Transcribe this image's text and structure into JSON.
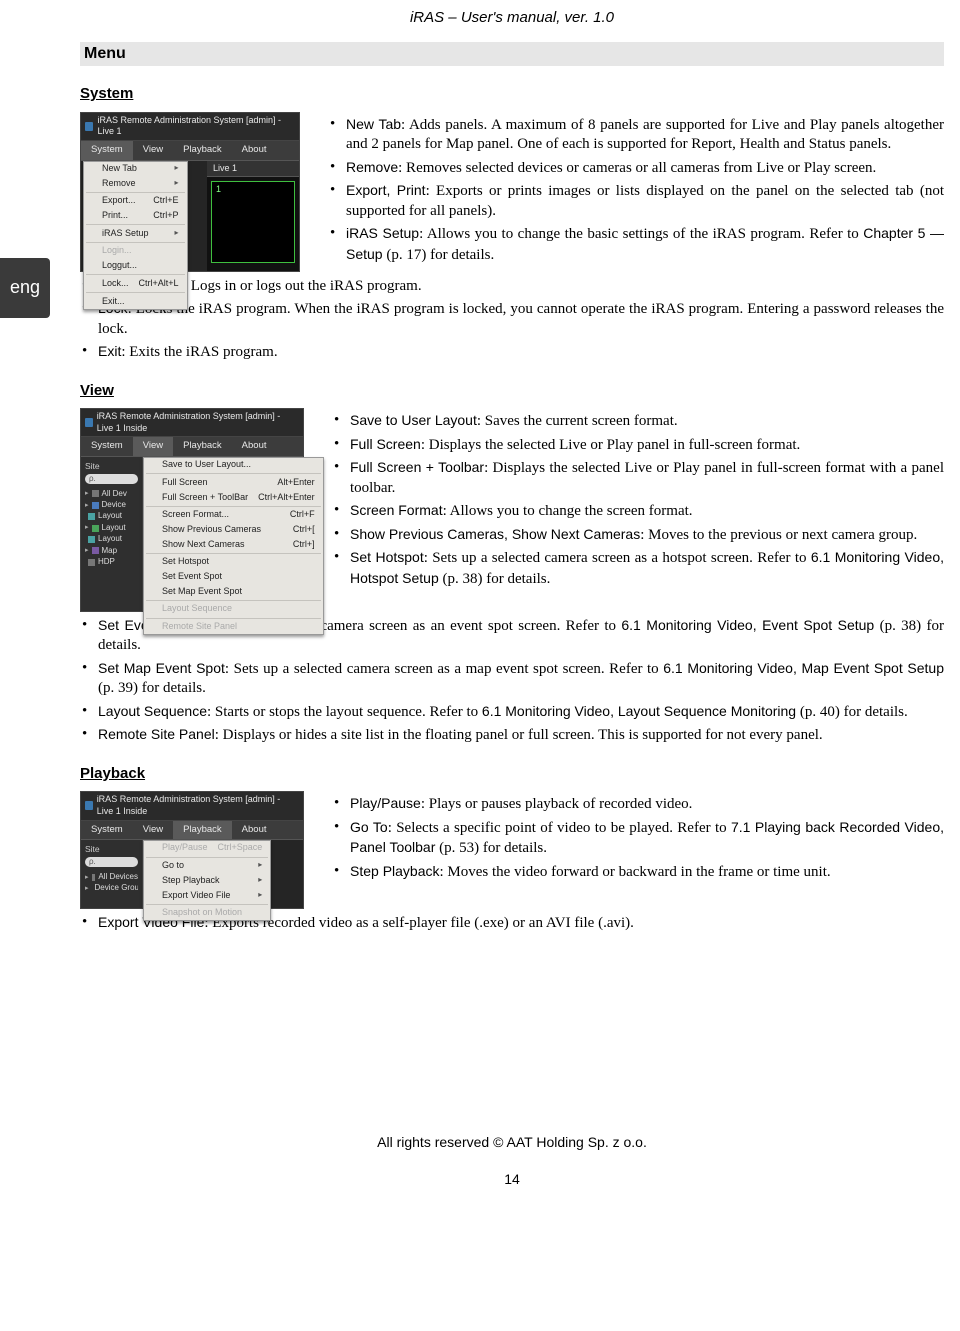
{
  "header": {
    "title": "iRAS – User's manual, ver. 1.0"
  },
  "menu_heading": "Menu",
  "lang_tab": "eng",
  "sections": {
    "system": {
      "title": "System",
      "screenshot": {
        "window_title": "iRAS Remote Administration System [admin] - Live 1",
        "menubar": [
          "System",
          "View",
          "Playback",
          "About"
        ],
        "active_menu_index": 0,
        "tab_label": "Live  1",
        "pane_label": "1",
        "menu_items": [
          {
            "label": "New Tab",
            "arrow": true
          },
          {
            "label": "Remove",
            "arrow": true
          },
          {
            "divider": true
          },
          {
            "label": "Export...",
            "shortcut": "Ctrl+E"
          },
          {
            "label": "Print...",
            "shortcut": "Ctrl+P"
          },
          {
            "divider": true
          },
          {
            "label": "iRAS Setup",
            "arrow": true
          },
          {
            "divider": true
          },
          {
            "label": "Login...",
            "disabled": true
          },
          {
            "label": "Loggut..."
          },
          {
            "divider": true
          },
          {
            "label": "Lock...",
            "shortcut": "Ctrl+Alt+L"
          },
          {
            "divider": true
          },
          {
            "label": "Exit..."
          }
        ]
      },
      "items_right": [
        {
          "term": "New Tab",
          "desc": ": Adds panels. A maximum of 8 panels are supported for Live and Play panels altogether and 2 panels for Map panel. One of each is supported for Report, Health and Status panels."
        },
        {
          "term": "Remove",
          "desc": ": Removes selected devices or cameras or all cameras from Live or Play screen."
        },
        {
          "term": "Export, Print",
          "desc": ": Exports or prints images or lists displayed on the panel on the selected tab (not supported for all panels)."
        },
        {
          "term": "iRAS Setup",
          "desc_pre": ": Allows you to change the basic settings of the iRAS program.  Refer to ",
          "ref": "Chapter 5 — Setup",
          "desc_post": " (p. 17) for details."
        }
      ],
      "items_below": [
        {
          "term": "Login, Logout",
          "desc": ": Logs in or logs out the iRAS program."
        },
        {
          "term": "Lock",
          "desc": ": Locks the iRAS program.  When the iRAS program is locked, you cannot operate the iRAS program.  Entering a password releases the lock."
        },
        {
          "term": "Exit",
          "desc": ": Exits the iRAS program."
        }
      ]
    },
    "view": {
      "title": "View",
      "screenshot": {
        "window_title": "iRAS Remote Administration System [admin] - Live 1   Inside",
        "menubar": [
          "System",
          "View",
          "Playback",
          "About"
        ],
        "active_menu_index": 1,
        "sidebar": {
          "header": "Site",
          "search": "ρ.",
          "tree": [
            {
              "tri": "▸",
              "color": "sq-gray",
              "label": "All Dev"
            },
            {
              "tri": "▸",
              "color": "sq-blue",
              "label": "Device"
            },
            {
              "tri": "",
              "color": "sq-cyan",
              "label": "Layout"
            },
            {
              "tri": "▸",
              "color": "sq-green",
              "label": "Layout"
            },
            {
              "tri": "",
              "color": "sq-cyan",
              "label": "Layout"
            },
            {
              "tri": "▸",
              "color": "sq-purple",
              "label": "Map"
            },
            {
              "tri": "",
              "color": "sq-gray",
              "label": "HDP"
            }
          ]
        },
        "menu_items": [
          {
            "label": "Save to User Layout..."
          },
          {
            "divider": true
          },
          {
            "label": "Full Screen",
            "shortcut": "Alt+Enter"
          },
          {
            "label": "Full Screen + ToolBar",
            "shortcut": "Ctrl+Alt+Enter"
          },
          {
            "divider": true
          },
          {
            "label": "Screen Format...",
            "shortcut": "Ctrl+F"
          },
          {
            "label": "Show Previous Cameras",
            "shortcut": "Ctrl+["
          },
          {
            "label": "Show Next Cameras",
            "shortcut": "Ctrl+]"
          },
          {
            "divider": true
          },
          {
            "label": "Set Hotspot"
          },
          {
            "label": "Set Event Spot"
          },
          {
            "label": "Set Map Event Spot"
          },
          {
            "divider": true
          },
          {
            "label": "Layout Sequence",
            "disabled": true
          },
          {
            "divider": true
          },
          {
            "label": "Remote Site Panel",
            "disabled": true
          }
        ]
      },
      "items_right": [
        {
          "term": "Save to User Layout",
          "desc": ": Saves the current screen format."
        },
        {
          "term": "Full Screen",
          "desc": ": Displays the selected Live or Play panel in full-screen format."
        },
        {
          "term": "Full Screen + Toolbar",
          "desc": ": Displays the selected Live or Play panel in full-screen format with a panel toolbar."
        },
        {
          "term": "Screen Format",
          "desc": ": Allows you to change the screen format."
        },
        {
          "term": "Show Previous Cameras, Show Next Cameras",
          "desc": ": Moves to the previous or next camera group."
        },
        {
          "term": "Set Hotspot",
          "desc_pre": ": Sets up a selected camera screen as a hotspot screen. Refer to ",
          "ref": "6.1 Monitoring Video, Hotspot Setup",
          "desc_post": " (p. 38) for details."
        }
      ],
      "items_below": [
        {
          "term": "Set Event Spot",
          "desc_pre": ": Sets up a selected camera screen as an event spot screen.  Refer to ",
          "ref": "6.1 Monitoring Video, Event Spot Setup",
          "desc_post": " (p. 38) for details."
        },
        {
          "term": "Set Map Event Spot",
          "desc_pre": ": Sets up a selected camera screen as a map event spot screen.  Refer to ",
          "ref": "6.1 Monitoring Video, Map Event Spot Setup",
          "desc_post": " (p. 39) for details."
        },
        {
          "term": "Layout Sequence",
          "desc_pre": ": Starts or stops the layout sequence.  Refer to ",
          "ref": "6.1 Monitoring Video, Layout Sequence Monitoring",
          "desc_post": " (p. 40) for details."
        },
        {
          "term": "Remote Site Panel",
          "desc": ": Displays or hides a site list in the floating panel or full screen.  This is supported for not every panel."
        }
      ]
    },
    "playback": {
      "title": "Playback",
      "screenshot": {
        "window_title": "iRAS Remote Administration System [admin] - Live 1   Inside",
        "menubar": [
          "System",
          "View",
          "Playback",
          "About"
        ],
        "active_menu_index": 2,
        "sidebar": {
          "header": "Site",
          "search": "ρ.",
          "tree": [
            {
              "tri": "▸",
              "color": "sq-gray",
              "label": "All Devices"
            },
            {
              "tri": "▸",
              "color": "sq-blue",
              "label": "Device Group"
            }
          ]
        },
        "menu_items": [
          {
            "label": "Play/Pause",
            "shortcut": "Ctrl+Space",
            "disabled": true
          },
          {
            "divider": true
          },
          {
            "label": "Go to",
            "arrow": true
          },
          {
            "label": "Step Playback",
            "arrow": true
          },
          {
            "label": "Export Video File",
            "arrow": true
          },
          {
            "divider": true
          },
          {
            "label": "Snapshot on Motion",
            "disabled": true
          }
        ]
      },
      "items_right": [
        {
          "term": "Play/Pause",
          "desc": ": Plays or pauses playback of recorded video."
        },
        {
          "term": "Go To",
          "desc_pre": ": Selects a specific point of video to be played.  Refer to ",
          "ref": "7.1 Playing back Recorded Video, Panel Toolbar",
          "desc_post": " (p. 53) for details."
        },
        {
          "term": "Step Playback",
          "desc": ": Moves the video forward or backward in the frame or time unit."
        }
      ],
      "items_below": [
        {
          "term": "Export Video File",
          "desc": ": Exports recorded video as a self-player file (.exe) or an AVI file (.avi)."
        }
      ]
    }
  },
  "footer": {
    "copyright": "All rights reserved © AAT Holding Sp. z o.o.",
    "page": "14"
  }
}
